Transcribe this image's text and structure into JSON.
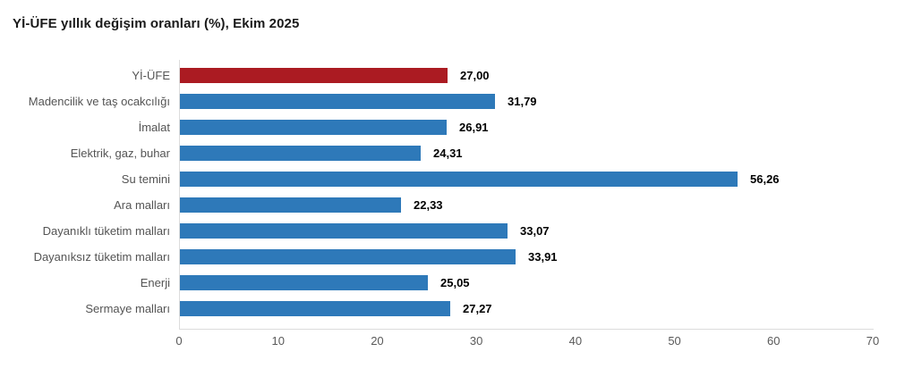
{
  "title": "Yİ-ÜFE yıllık değişim oranları (%), Ekim 2025",
  "chart_data": {
    "type": "bar",
    "orientation": "horizontal",
    "title": "Yİ-ÜFE yıllık değişim oranları (%), Ekim 2025",
    "categories": [
      "Yİ-ÜFE",
      "Madencilik ve taş ocakcılığı",
      "İmalat",
      "Elektrik, gaz, buhar",
      "Su temini",
      "Ara malları",
      "Dayanıklı tüketim malları",
      "Dayanıksız tüketim malları",
      "Enerji",
      "Sermaye malları"
    ],
    "values": [
      27.0,
      31.79,
      26.91,
      24.31,
      56.26,
      22.33,
      33.07,
      33.91,
      25.05,
      27.27
    ],
    "value_labels": [
      "27,00",
      "31,79",
      "26,91",
      "24,31",
      "56,26",
      "22,33",
      "33,07",
      "33,91",
      "25,05",
      "27,27"
    ],
    "xlabel": "",
    "ylabel": "",
    "xlim": [
      0,
      70
    ],
    "x_ticks": [
      0,
      10,
      20,
      30,
      40,
      50,
      60,
      70
    ],
    "grid": false,
    "legend": "none",
    "highlight_index": 0,
    "highlight_color": "#ab1b22",
    "bar_color": "#2e79b9",
    "axis_color": "#dcdcdc",
    "category_label_color": "#545454",
    "tick_label_color": "#595959",
    "value_label_color": "#000000",
    "title_color": "#1a1a1a",
    "background_color": "#ffffff"
  }
}
